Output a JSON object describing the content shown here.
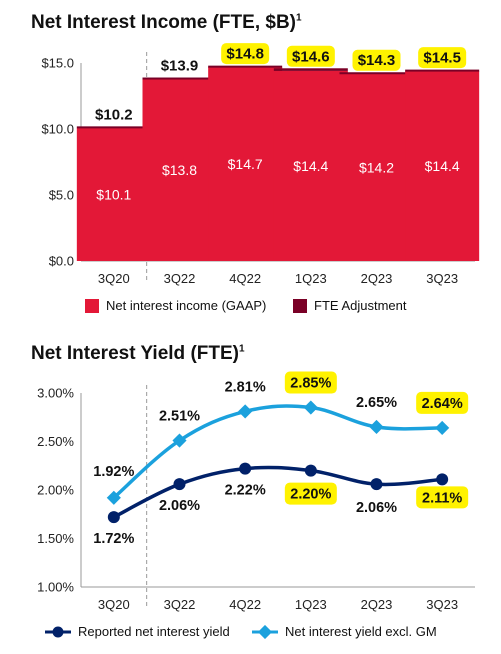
{
  "colors": {
    "bar_gaap": "#E31837",
    "bar_fte": "#7A0026",
    "line_reported": "#012169",
    "line_excl_gm": "#1BA1DD",
    "highlight": "#FFF200"
  },
  "chart_data": [
    {
      "type": "bar",
      "title": "Net Interest Income (FTE, $B)",
      "title_superscript": "1",
      "categories": [
        "3Q20",
        "3Q22",
        "4Q22",
        "1Q23",
        "2Q23",
        "3Q23"
      ],
      "series": [
        {
          "name": "Net interest income (GAAP)",
          "values": [
            10.1,
            13.8,
            14.7,
            14.4,
            14.2,
            14.4
          ],
          "labels": [
            "$10.1",
            "$13.8",
            "$14.7",
            "$14.4",
            "$14.2",
            "$14.4"
          ]
        },
        {
          "name": "FTE Adjustment",
          "values": [
            0.1,
            0.1,
            0.1,
            0.2,
            0.1,
            0.1
          ]
        }
      ],
      "totals": [
        10.2,
        13.9,
        14.8,
        14.6,
        14.3,
        14.5
      ],
      "total_labels": [
        "$10.2",
        "$13.9",
        "$14.8",
        "$14.6",
        "$14.3",
        "$14.5"
      ],
      "highlighted_totals": [
        false,
        false,
        true,
        true,
        true,
        true
      ],
      "ylim": [
        0,
        15
      ],
      "yticks": [
        0,
        5,
        10,
        15
      ],
      "ytick_labels": [
        "$0.0",
        "$5.0",
        "$10.0",
        "$15.0"
      ],
      "stacked": true,
      "legend": "bottom",
      "grid": false,
      "divider_after_index": 0
    },
    {
      "type": "line",
      "title": "Net Interest Yield (FTE)",
      "title_superscript": "1",
      "categories": [
        "3Q20",
        "3Q22",
        "4Q22",
        "1Q23",
        "2Q23",
        "3Q23"
      ],
      "series": [
        {
          "name": "Reported net interest yield",
          "values": [
            1.72,
            2.06,
            2.22,
            2.2,
            2.06,
            2.11
          ],
          "labels": [
            "1.72%",
            "2.06%",
            "2.22%",
            "2.20%",
            "2.06%",
            "2.11%"
          ],
          "highlighted": [
            false,
            false,
            false,
            true,
            false,
            true
          ]
        },
        {
          "name": "Net interest yield excl. GM",
          "values": [
            1.92,
            2.51,
            2.81,
            2.85,
            2.65,
            2.64
          ],
          "labels": [
            "1.92%",
            "2.51%",
            "2.81%",
            "2.85%",
            "2.65%",
            "2.64%"
          ],
          "highlighted": [
            false,
            false,
            false,
            true,
            false,
            true
          ]
        }
      ],
      "ylim": [
        1.0,
        3.0
      ],
      "yticks": [
        1.0,
        1.5,
        2.0,
        2.5,
        3.0
      ],
      "ytick_labels": [
        "1.00%",
        "1.50%",
        "2.00%",
        "2.50%",
        "3.00%"
      ],
      "legend": "bottom",
      "grid": false,
      "divider_after_index": 0
    }
  ]
}
